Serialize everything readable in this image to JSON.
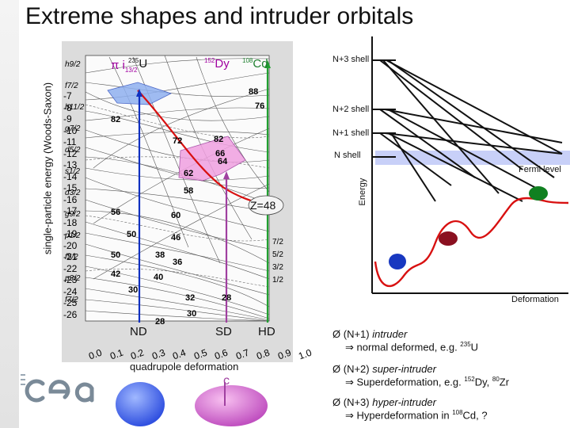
{
  "title": "Extreme shapes and intruder orbitals",
  "nilsson": {
    "ylabel": "single-particle energy (Woods-Saxon)",
    "xlabel": "quadrupole deformation",
    "xticks": [
      "0.0",
      "0.1",
      "0.2",
      "0.3",
      "0.4",
      "0.5",
      "0.6",
      "0.7",
      "0.8",
      "0.9",
      "1.0"
    ],
    "yticks": [
      "-7",
      "-8",
      "-9",
      "-10",
      "-11",
      "-12",
      "-13",
      "-14",
      "-15",
      "-16",
      "-17",
      "-18",
      "-19",
      "-20",
      "-21",
      "-22",
      "-23",
      "-24",
      "-25",
      "-26"
    ],
    "left_orbitals": [
      "h9/2",
      "f7/2",
      "h11/2",
      "g7/2",
      "d5/2",
      "s1/2",
      "d3/2",
      "g9/2",
      "p1/2",
      "f5/2",
      "p3/2",
      "f7/2"
    ],
    "right_orbitals": [
      "7/2",
      "5/2",
      "3/2",
      "1/2"
    ],
    "magic_numbers": [
      "88",
      "82",
      "76",
      "82",
      "72",
      "66",
      "64",
      "62",
      "58",
      "56",
      "60",
      "50",
      "50",
      "46",
      "42",
      "40",
      "38",
      "36",
      "30",
      "32",
      "28",
      "30",
      "28"
    ],
    "annotations": {
      "pi_i": "π i",
      "pi_i_sub": "13/2",
      "u235_sup": "235",
      "u235": "U",
      "dy152_sup": "152",
      "dy152": "Dy",
      "cd108_sup": "108",
      "cd108": "Cd",
      "z48": "Z=48",
      "nd": "ND",
      "sd": "SD",
      "hd": "HD",
      "c": "c"
    }
  },
  "shell_diagram": {
    "energy_label": "Energy",
    "deformation_label": "Deformation",
    "fermi_label": "Fermi level",
    "shells": [
      "N+3 shell",
      "N+2 shell",
      "N+1 shell",
      "N shell"
    ]
  },
  "bullets": [
    {
      "arrow": "Ø",
      "text": "(N+1) ",
      "emph": "intruder",
      "sub": "⇒ normal deformed, e.g. ",
      "sub_sup": "235",
      "sub_tail": "U"
    },
    {
      "arrow": "Ø",
      "text": "(N+2) ",
      "emph": "super-intruder",
      "sub": "⇒ Superdeformation, e.g. ",
      "sub_sup": "152",
      "sub_tail": "Dy, ",
      "sub_sup2": "80",
      "sub_tail2": "Zr"
    },
    {
      "arrow": "Ø",
      "text": "(N+3) ",
      "emph": "hyper-intruder",
      "sub": "⇒ Hyperdeformation in ",
      "sub_sup": "108",
      "sub_tail": "Cd, ?"
    }
  ],
  "colors": {
    "blue_highlight": "#8fb0f0",
    "pink_highlight": "#f0a0e0",
    "trajectory_red": "#d81010",
    "nd_blue": "#1030c0",
    "sd_purple": "#a040a0",
    "hd_green": "#20a030",
    "fermi_band": "#c8d0f8",
    "ball_blue": "#1838c0",
    "ball_red": "#8a1020",
    "ball_green": "#108020"
  }
}
